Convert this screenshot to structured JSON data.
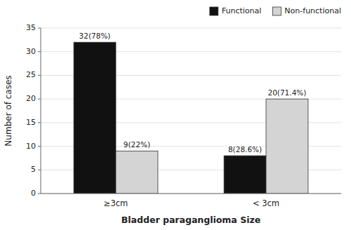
{
  "chart_data": {
    "type": "bar",
    "categories": [
      "≥3cm",
      "< 3cm"
    ],
    "series": [
      {
        "name": "Functional",
        "color": "#111111",
        "values": [
          32,
          8
        ],
        "value_labels": [
          "32(78%)",
          "8(28.6%)"
        ]
      },
      {
        "name": "Non-functional",
        "color": "#d4d4d4",
        "values": [
          9,
          20
        ],
        "value_labels": [
          "9(22%)",
          "20(71.4%)"
        ]
      }
    ],
    "ylim": [
      0,
      35
    ],
    "yticks": [
      0,
      5,
      10,
      15,
      20,
      25,
      30,
      35
    ],
    "ylabel": "Number of cases",
    "xlabel": "Bladder paraganglioma Size",
    "grid": true,
    "legend": "upper right",
    "data_labels": true
  }
}
